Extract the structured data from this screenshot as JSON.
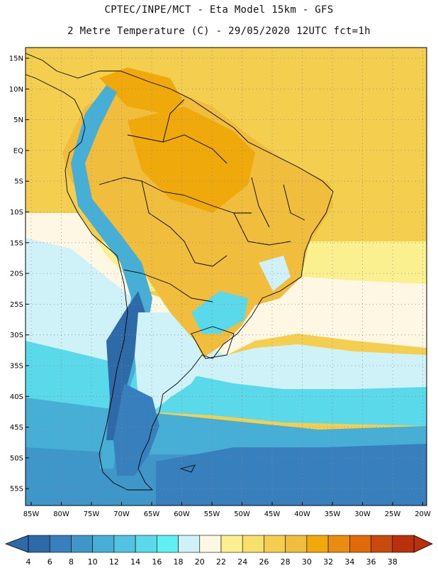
{
  "header": {
    "title": "CPTEC/INPE/MCT -  Eta Model 15km - GFS",
    "subtitle": "2 Metre Temperature (C) - 29/05/2020 12UTC fct=1h"
  },
  "axes": {
    "lat_labels": [
      "15N",
      "10N",
      "5N",
      "EQ",
      "5S",
      "10S",
      "15S",
      "20S",
      "25S",
      "30S",
      "35S",
      "40S",
      "45S",
      "50S",
      "55S"
    ],
    "lon_labels": [
      "85W",
      "80W",
      "75W",
      "70W",
      "65W",
      "60W",
      "55W",
      "50W",
      "45W",
      "40W",
      "35W",
      "30W",
      "25W",
      "20W"
    ]
  },
  "colorbar": {
    "labels": [
      "4",
      "6",
      "8",
      "10",
      "12",
      "14",
      "16",
      "18",
      "20",
      "22",
      "24",
      "26",
      "28",
      "30",
      "32",
      "34",
      "36",
      "38"
    ],
    "colors": [
      "#2f6aa8",
      "#3780bd",
      "#3f97c9",
      "#47aed6",
      "#52c3e2",
      "#5ad9ea",
      "#5ef0f2",
      "#cff2f9",
      "#fdf7e3",
      "#fbf08f",
      "#f7e06b",
      "#f4cf4f",
      "#f0bd3c",
      "#efa90a",
      "#e98c10",
      "#e06a08",
      "#c84a0e",
      "#b8300c"
    ]
  },
  "map": {
    "ocean_colors": {
      "tropical": "#f4cf4f",
      "warm": "#fbf08f",
      "mild": "#fdf7e3",
      "cool": "#5ad9ea",
      "cold": "#47aed6",
      "coldest": "#3780bd"
    }
  }
}
